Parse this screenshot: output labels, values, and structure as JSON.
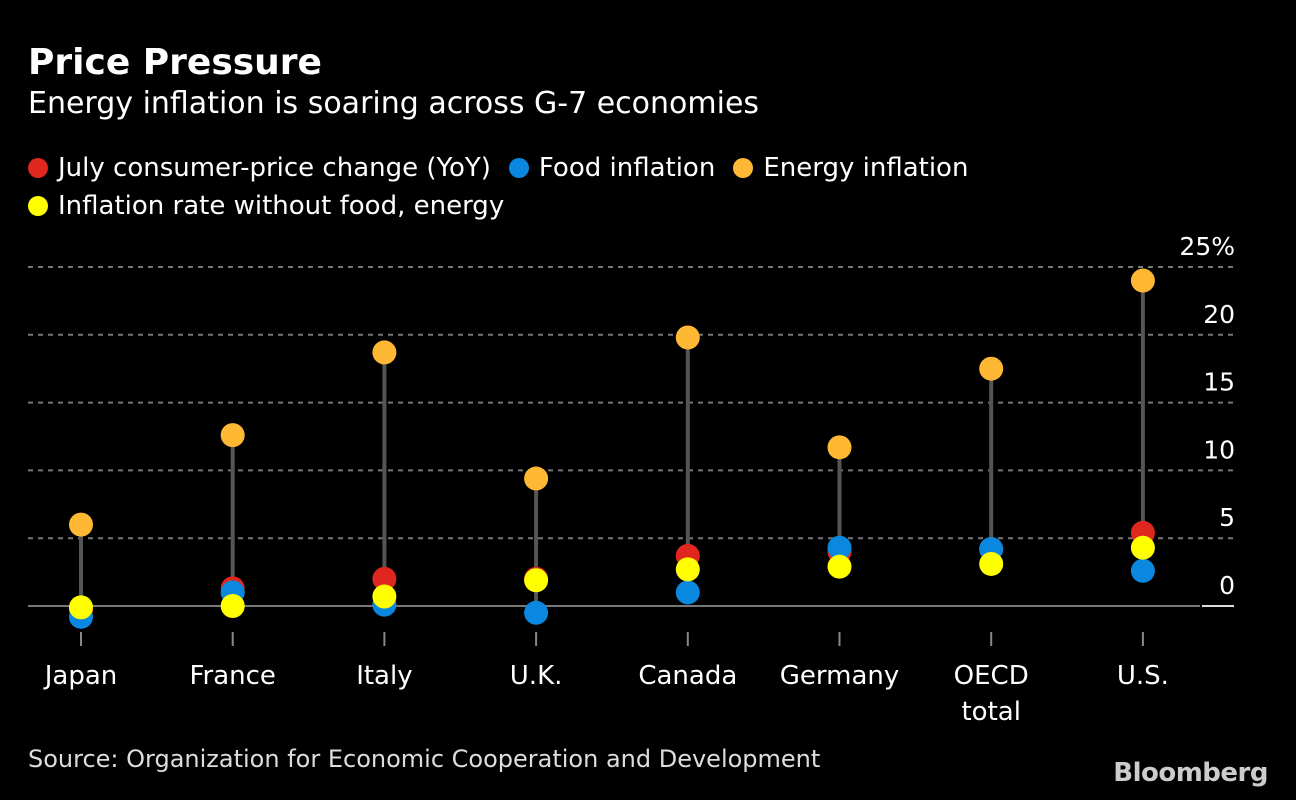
{
  "chart_data": {
    "type": "scatter",
    "title": "Price Pressure",
    "subtitle": "Energy inflation is soaring across G-7 economies",
    "categories": [
      "Japan",
      "France",
      "Italy",
      "U.K.",
      "Canada",
      "Germany",
      "OECD total",
      "U.S."
    ],
    "category_lines": [
      [
        "Japan"
      ],
      [
        "France"
      ],
      [
        "Italy"
      ],
      [
        "U.K."
      ],
      [
        "Canada"
      ],
      [
        "Germany"
      ],
      [
        "OECD",
        "total"
      ],
      [
        "U.S."
      ]
    ],
    "series": [
      {
        "name": "July consumer-price change (YoY)",
        "color": "#e0271f",
        "values": [
          -0.3,
          1.3,
          2.0,
          2.0,
          3.7,
          4.0,
          4.2,
          5.4
        ]
      },
      {
        "name": "Food inflation",
        "color": "#0a88e0",
        "values": [
          -0.8,
          1.0,
          0.1,
          -0.5,
          1.0,
          4.3,
          4.2,
          2.6
        ]
      },
      {
        "name": "Energy inflation",
        "color": "#ffb833",
        "values": [
          6.0,
          12.6,
          18.7,
          9.4,
          19.8,
          11.7,
          17.5,
          24.0
        ]
      },
      {
        "name": "Inflation rate without food, energy",
        "color": "#ffff00",
        "values": [
          -0.1,
          0.0,
          0.7,
          1.9,
          2.7,
          2.9,
          3.1,
          4.3
        ]
      }
    ],
    "yticks": [
      "0",
      "5",
      "10",
      "15",
      "20",
      "25%"
    ],
    "ytick_values": [
      0,
      5,
      10,
      15,
      20,
      25
    ],
    "ylim": [
      -2,
      25
    ],
    "grid": true,
    "legend_position": "top-left",
    "source": "Source: Organization for Economic Cooperation and Development",
    "brand": "Bloomberg"
  }
}
